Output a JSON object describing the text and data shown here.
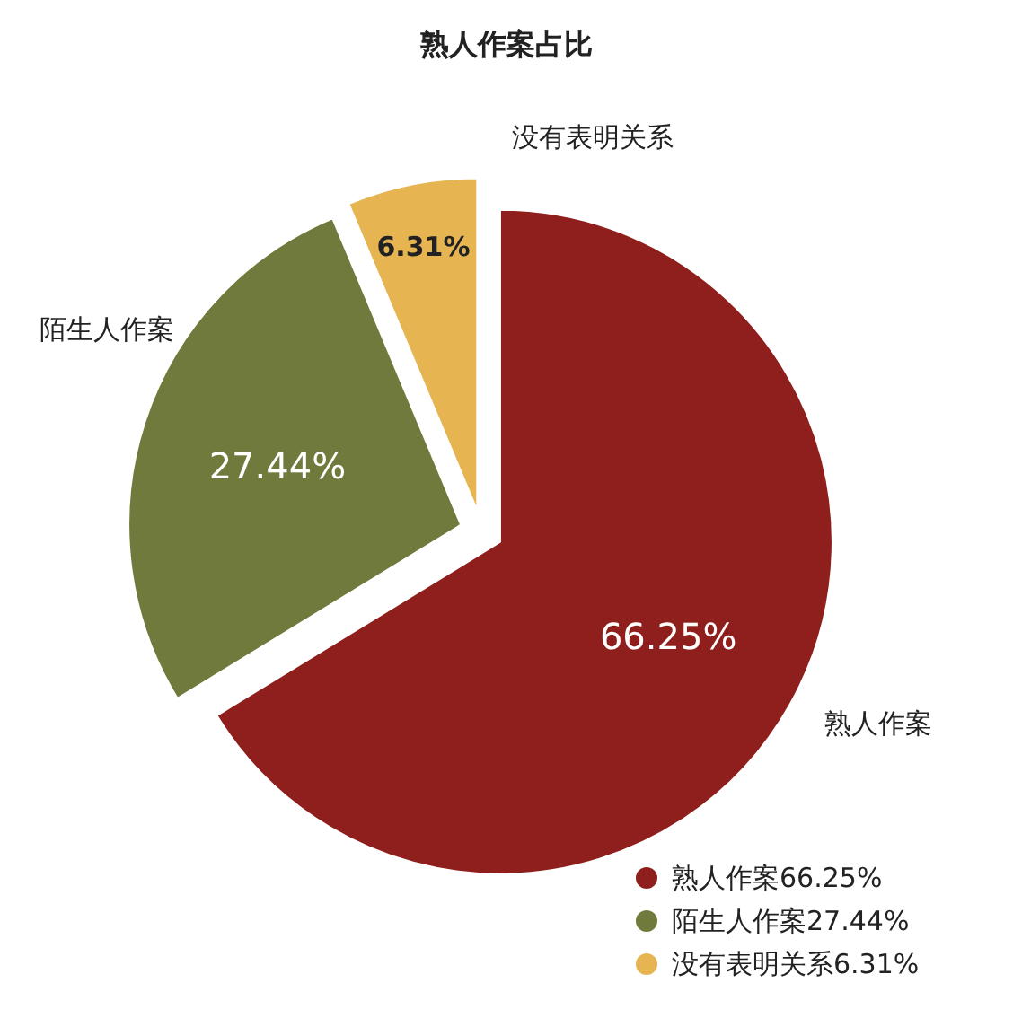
{
  "chart_data": {
    "type": "pie",
    "title": "熟人作案占比",
    "categories": [
      "熟人作案",
      "陌生人作案",
      "没有表明关系"
    ],
    "values": [
      66.25,
      27.44,
      6.31
    ],
    "value_labels": [
      "66.25%",
      "27.44%",
      "6.31%"
    ],
    "colors": [
      "#8e1f1c",
      "#6f7a3c",
      "#e6b552"
    ],
    "legend": "bottom right"
  }
}
